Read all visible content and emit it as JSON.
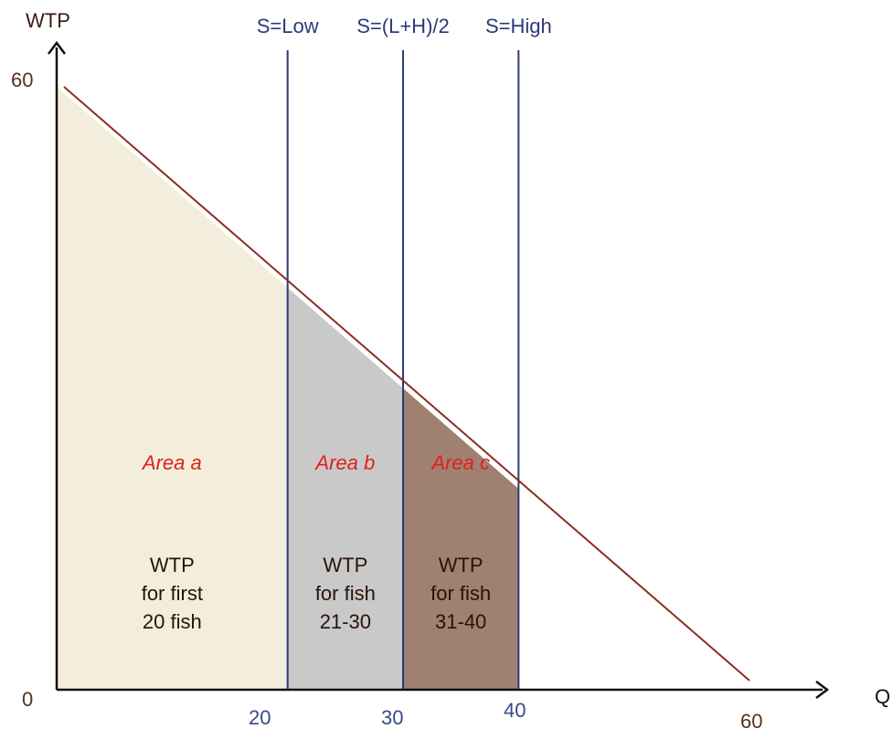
{
  "chart_data": {
    "type": "area",
    "title": "",
    "xlabel": "Q",
    "ylabel": "WTP",
    "xlim": [
      0,
      60
    ],
    "ylim": [
      0,
      60
    ],
    "x_ticks": [
      "0",
      "20",
      "30",
      "40",
      "60"
    ],
    "y_ticks": [
      "0",
      "60"
    ],
    "demand_line": {
      "x": [
        0,
        60
      ],
      "y": [
        60,
        0
      ]
    },
    "supply_lines": [
      {
        "label": "S=Low",
        "x": 20
      },
      {
        "label": "S=(L+H)/2",
        "x": 30
      },
      {
        "label": "S=High",
        "x": 40
      }
    ],
    "areas": [
      {
        "name": "Area a",
        "x_from": 0,
        "x_to": 20,
        "caption": [
          "WTP",
          "for first",
          "20 fish"
        ],
        "color": "#f3eedb"
      },
      {
        "name": "Area b",
        "x_from": 20,
        "x_to": 30,
        "caption": [
          "WTP",
          "for fish",
          "21-30"
        ],
        "color": "#c9c9c9"
      },
      {
        "name": "Area c",
        "x_from": 30,
        "x_to": 40,
        "caption": [
          "WTP",
          "for fish",
          "31-40"
        ],
        "color": "#a08070"
      }
    ],
    "colors": {
      "demand": "#8b2e1f",
      "supply": "#2b3a7a",
      "axis": "#111111",
      "area_label": "#e02020",
      "tick": "#3a4a8a"
    }
  }
}
